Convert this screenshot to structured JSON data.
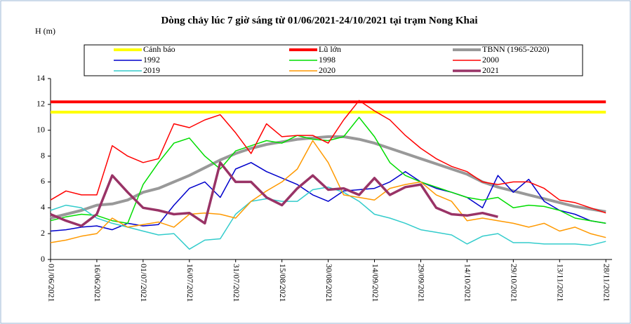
{
  "chart_data": {
    "type": "line",
    "title": "Dòng chảy lúc 7 giờ sáng từ 01/06/2021-24/10/2021 tại trạm Nong Khai",
    "y_label": "H (m)",
    "x": [
      "01/06/2021",
      "06/06/2021",
      "11/06/2021",
      "16/06/2021",
      "21/06/2021",
      "26/06/2021",
      "01/07/2021",
      "06/07/2021",
      "11/07/2021",
      "16/07/2021",
      "21/07/2021",
      "26/07/2021",
      "31/07/2021",
      "05/08/2021",
      "10/08/2021",
      "15/08/2021",
      "20/08/2021",
      "25/08/2021",
      "30/08/2021",
      "04/09/2021",
      "09/09/2021",
      "14/09/2021",
      "19/09/2021",
      "24/09/2021",
      "29/09/2021",
      "04/10/2021",
      "09/10/2021",
      "14/10/2021",
      "19/10/2021",
      "24/10/2021",
      "29/10/2021",
      "03/11/2021",
      "08/11/2021",
      "13/11/2021",
      "18/11/2021",
      "23/11/2021",
      "28/11/2021"
    ],
    "xlim": [
      "01/06/2021",
      "30/11/2021"
    ],
    "xticks": [
      "01/06/2021",
      "16/06/2021",
      "01/07/2021",
      "16/07/2021",
      "31/07/2021",
      "15/08/2021",
      "30/08/2021",
      "14/09/2021",
      "29/09/2021",
      "14/10/2021",
      "29/10/2021",
      "13/11/2021",
      "28/11/2021"
    ],
    "ylim": [
      0,
      14
    ],
    "yticks": [
      0,
      2,
      4,
      6,
      8,
      10,
      12,
      14
    ],
    "series": [
      {
        "name": "Cảnh báo",
        "color": "#ffff00",
        "width": 4,
        "values": [
          11.4,
          11.4,
          11.4,
          11.4,
          11.4,
          11.4,
          11.4,
          11.4,
          11.4,
          11.4,
          11.4,
          11.4,
          11.4,
          11.4,
          11.4,
          11.4,
          11.4,
          11.4,
          11.4,
          11.4,
          11.4,
          11.4,
          11.4,
          11.4,
          11.4,
          11.4,
          11.4,
          11.4,
          11.4,
          11.4,
          11.4,
          11.4,
          11.4,
          11.4,
          11.4,
          11.4,
          11.4
        ]
      },
      {
        "name": "Lũ lớn",
        "color": "#ff0000",
        "width": 4,
        "values": [
          12.2,
          12.2,
          12.2,
          12.2,
          12.2,
          12.2,
          12.2,
          12.2,
          12.2,
          12.2,
          12.2,
          12.2,
          12.2,
          12.2,
          12.2,
          12.2,
          12.2,
          12.2,
          12.2,
          12.2,
          12.2,
          12.2,
          12.2,
          12.2,
          12.2,
          12.2,
          12.2,
          12.2,
          12.2,
          12.2,
          12.2,
          12.2,
          12.2,
          12.2,
          12.2,
          12.2,
          12.2
        ]
      },
      {
        "name": "TBNN (1965-2020)",
        "color": "#999999",
        "width": 4,
        "values": [
          3.2,
          3.5,
          3.8,
          4.2,
          4.3,
          4.6,
          5.2,
          5.5,
          6.0,
          6.5,
          7.1,
          7.7,
          8.2,
          8.6,
          8.9,
          9.1,
          9.3,
          9.4,
          9.5,
          9.5,
          9.3,
          9.0,
          8.6,
          8.2,
          7.8,
          7.4,
          7.0,
          6.6,
          6.0,
          5.6,
          5.3,
          5.0,
          4.7,
          4.4,
          4.1,
          3.9,
          3.7
        ]
      },
      {
        "name": "1992",
        "color": "#0000cc",
        "width": 1.5,
        "values": [
          2.2,
          2.3,
          2.5,
          2.6,
          2.3,
          2.8,
          2.6,
          2.7,
          4.2,
          5.5,
          6.0,
          4.8,
          7.0,
          7.5,
          6.8,
          6.3,
          5.8,
          5.0,
          4.5,
          5.3,
          5.4,
          5.5,
          6.0,
          6.8,
          6.0,
          5.5,
          5.2,
          4.8,
          4.0,
          6.5,
          5.2,
          6.2,
          4.5,
          3.8,
          3.5,
          3.0,
          2.8
        ]
      },
      {
        "name": "1998",
        "color": "#00dd00",
        "width": 1.5,
        "values": [
          3.0,
          3.3,
          3.5,
          3.4,
          3.0,
          2.8,
          5.8,
          7.5,
          9.0,
          9.4,
          8.0,
          7.0,
          8.4,
          8.8,
          9.2,
          9.0,
          9.6,
          9.3,
          9.2,
          9.5,
          11.0,
          9.5,
          7.5,
          6.5,
          6.0,
          5.6,
          5.2,
          4.8,
          4.6,
          4.8,
          4.0,
          4.2,
          4.1,
          3.8,
          3.2,
          3.0,
          2.8
        ]
      },
      {
        "name": "2000",
        "color": "#ff0000",
        "width": 1.5,
        "values": [
          4.6,
          5.3,
          5.0,
          5.0,
          8.8,
          8.0,
          7.5,
          7.8,
          10.5,
          10.2,
          10.8,
          11.2,
          9.8,
          8.2,
          10.5,
          9.5,
          9.6,
          9.6,
          9.0,
          10.8,
          12.3,
          11.5,
          10.8,
          9.6,
          8.6,
          7.8,
          7.2,
          6.8,
          6.0,
          5.8,
          6.0,
          6.0,
          5.5,
          4.6,
          4.4,
          4.0,
          3.6
        ]
      },
      {
        "name": "2019",
        "color": "#33cccc",
        "width": 1.5,
        "values": [
          3.8,
          4.2,
          4.0,
          3.2,
          2.8,
          2.5,
          2.2,
          1.9,
          2.0,
          0.8,
          1.5,
          1.6,
          3.5,
          4.5,
          4.7,
          4.5,
          4.5,
          5.4,
          5.6,
          5.2,
          4.5,
          3.5,
          3.2,
          2.8,
          2.3,
          2.1,
          1.9,
          1.2,
          1.8,
          2.0,
          1.3,
          1.3,
          1.2,
          1.2,
          1.2,
          1.1,
          1.4
        ]
      },
      {
        "name": "2020",
        "color": "#ff9900",
        "width": 1.5,
        "values": [
          1.3,
          1.5,
          1.8,
          2.0,
          3.2,
          2.5,
          2.7,
          2.9,
          2.5,
          3.5,
          3.6,
          3.5,
          3.2,
          4.5,
          5.3,
          6.0,
          7.0,
          9.2,
          7.5,
          5.0,
          4.8,
          4.6,
          5.5,
          5.8,
          6.0,
          5.0,
          4.5,
          3.0,
          3.2,
          3.0,
          2.8,
          2.5,
          2.8,
          2.2,
          2.5,
          2.0,
          1.7
        ]
      },
      {
        "name": "2021",
        "color": "#993366",
        "width": 3.5,
        "values": [
          3.5,
          3.0,
          2.6,
          3.5,
          6.5,
          5.2,
          4.0,
          3.8,
          3.5,
          3.6,
          2.8,
          7.5,
          6.0,
          6.0,
          4.8,
          4.2,
          5.5,
          6.5,
          5.4,
          5.5,
          5.0,
          6.3,
          5.0,
          5.6,
          5.8,
          4.0,
          3.5,
          3.4,
          3.6,
          3.3,
          null,
          null,
          null,
          null,
          null,
          null,
          null
        ]
      }
    ]
  }
}
